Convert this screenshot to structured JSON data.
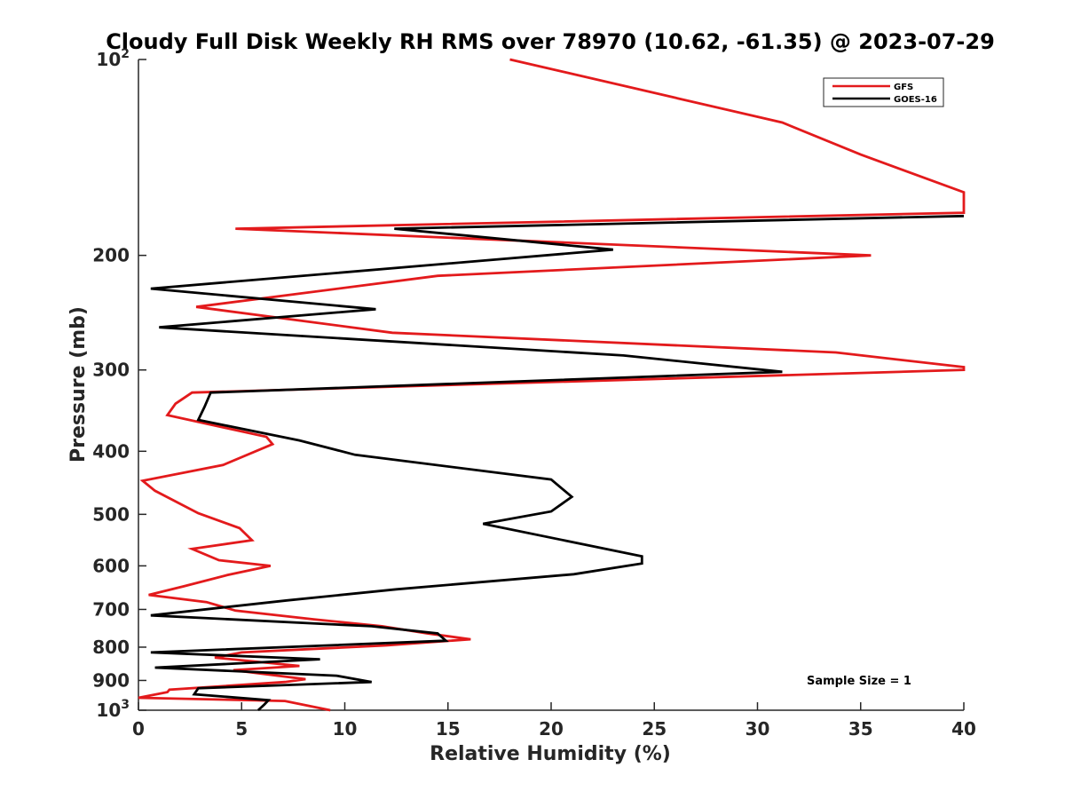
{
  "chart_data": {
    "type": "line",
    "title": "Cloudy Full Disk Weekly RH RMS over 78970 (10.62, -61.35) @ 2023-07-29",
    "xlabel": "Relative Humidity (%)",
    "ylabel": "Pressure (mb)",
    "xlim": [
      0,
      40
    ],
    "ylim": [
      100,
      1000
    ],
    "yscale": "log",
    "y_reversed": true,
    "xticks": [
      0,
      5,
      10,
      15,
      20,
      25,
      30,
      35,
      40
    ],
    "yticks": [
      {
        "value": 100,
        "base": "10",
        "exp": "2"
      },
      {
        "value": 200,
        "label": "200"
      },
      {
        "value": 300,
        "label": "300"
      },
      {
        "value": 400,
        "label": "400"
      },
      {
        "value": 500,
        "label": "500"
      },
      {
        "value": 600,
        "label": "600"
      },
      {
        "value": 700,
        "label": "700"
      },
      {
        "value": 800,
        "label": "800"
      },
      {
        "value": 900,
        "label": "900"
      },
      {
        "value": 1000,
        "base": "10",
        "exp": "3"
      }
    ],
    "legend_position": "top-right",
    "grid": false,
    "series": [
      {
        "name": "GFS",
        "color": "#e31a1c",
        "points": [
          [
            18.0,
            100
          ],
          [
            31.2,
            125
          ],
          [
            35.0,
            140
          ],
          [
            40.0,
            160
          ],
          [
            40.0,
            172
          ],
          [
            4.7,
            182
          ],
          [
            35.5,
            200
          ],
          [
            14.5,
            215
          ],
          [
            2.8,
            240
          ],
          [
            12.3,
            263
          ],
          [
            33.8,
            282
          ],
          [
            40.0,
            297
          ],
          [
            40.0,
            300
          ],
          [
            2.6,
            325
          ],
          [
            1.8,
            338
          ],
          [
            1.4,
            352
          ],
          [
            6.2,
            380
          ],
          [
            6.5,
            390
          ],
          [
            4.1,
            420
          ],
          [
            0.2,
            444
          ],
          [
            0.8,
            460
          ],
          [
            2.9,
            498
          ],
          [
            4.9,
            525
          ],
          [
            5.5,
            548
          ],
          [
            2.6,
            565
          ],
          [
            3.9,
            588
          ],
          [
            6.4,
            600
          ],
          [
            4.3,
            620
          ],
          [
            2.2,
            645
          ],
          [
            0.5,
            665
          ],
          [
            3.3,
            682
          ],
          [
            4.7,
            703
          ],
          [
            8.5,
            725
          ],
          [
            11.8,
            743
          ],
          [
            14.0,
            762
          ],
          [
            16.1,
            778
          ],
          [
            12.0,
            795
          ],
          [
            5.0,
            815
          ],
          [
            3.7,
            830
          ],
          [
            7.8,
            855
          ],
          [
            4.6,
            868
          ],
          [
            8.1,
            896
          ],
          [
            7.1,
            905
          ],
          [
            1.5,
            930
          ],
          [
            1.4,
            938
          ],
          [
            0.0,
            957
          ],
          [
            7.1,
            968
          ],
          [
            9.3,
            1000
          ]
        ]
      },
      {
        "name": "GOES-16",
        "color": "#000000",
        "points": [
          [
            40.0,
            174
          ],
          [
            12.4,
            182
          ],
          [
            23.0,
            196
          ],
          [
            0.6,
            225
          ],
          [
            11.5,
            242
          ],
          [
            1.0,
            258
          ],
          [
            23.5,
            285
          ],
          [
            31.2,
            302
          ],
          [
            3.5,
            325
          ],
          [
            3.2,
            342
          ],
          [
            2.9,
            358
          ],
          [
            7.8,
            385
          ],
          [
            10.5,
            405
          ],
          [
            20.0,
            442
          ],
          [
            21.0,
            470
          ],
          [
            20.0,
            495
          ],
          [
            16.7,
            517
          ],
          [
            24.4,
            580
          ],
          [
            24.4,
            595
          ],
          [
            21.1,
            618
          ],
          [
            12.5,
            652
          ],
          [
            7.2,
            678
          ],
          [
            0.6,
            715
          ],
          [
            11.3,
            743
          ],
          [
            14.5,
            762
          ],
          [
            14.9,
            782
          ],
          [
            0.6,
            815
          ],
          [
            8.8,
            835
          ],
          [
            0.8,
            860
          ],
          [
            9.6,
            885
          ],
          [
            11.3,
            905
          ],
          [
            2.9,
            925
          ],
          [
            2.7,
            945
          ],
          [
            6.3,
            965
          ],
          [
            6.1,
            980
          ],
          [
            5.8,
            1000
          ]
        ]
      }
    ],
    "annotation": "Sample Size = 1"
  }
}
